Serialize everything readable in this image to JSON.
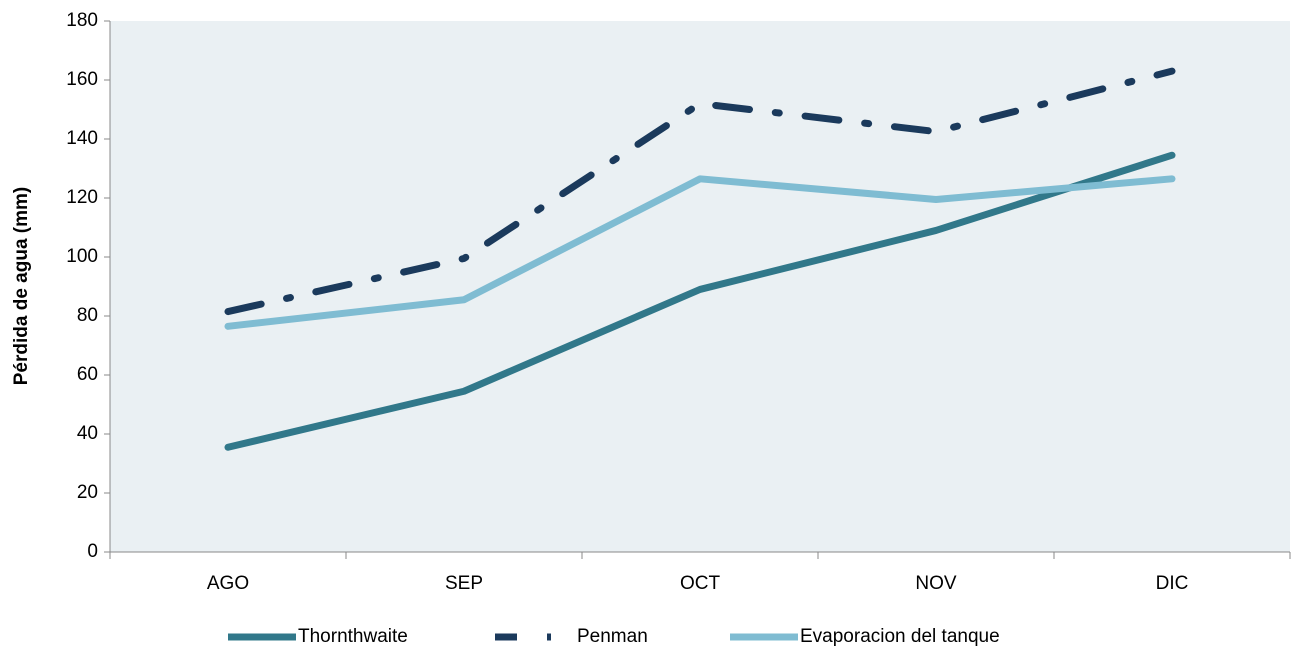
{
  "chart_data": {
    "type": "line",
    "y_label": "Pérdida de agua (mm)",
    "categories": [
      "AGO",
      "SEP",
      "OCT",
      "NOV",
      "DIC"
    ],
    "series": [
      {
        "name": "Thornthwaite",
        "color": "#31788a",
        "style": "solid",
        "values": [
          35.5,
          54.5,
          89,
          109,
          134.5
        ]
      },
      {
        "name": "Penman",
        "color": "#1b3a5c",
        "style": "dashdot",
        "values": [
          81.5,
          99.5,
          152,
          142.5,
          163
        ]
      },
      {
        "name": "Evaporacion del tanque",
        "color": "#7fbcd2",
        "style": "solid",
        "values": [
          76.5,
          85.5,
          126.5,
          119.5,
          126.5
        ]
      }
    ],
    "ylim": [
      0,
      180
    ],
    "yticks": [
      0,
      20,
      40,
      60,
      80,
      100,
      120,
      140,
      160,
      180
    ],
    "background": "#eaf0f3",
    "legend": "bottom"
  }
}
